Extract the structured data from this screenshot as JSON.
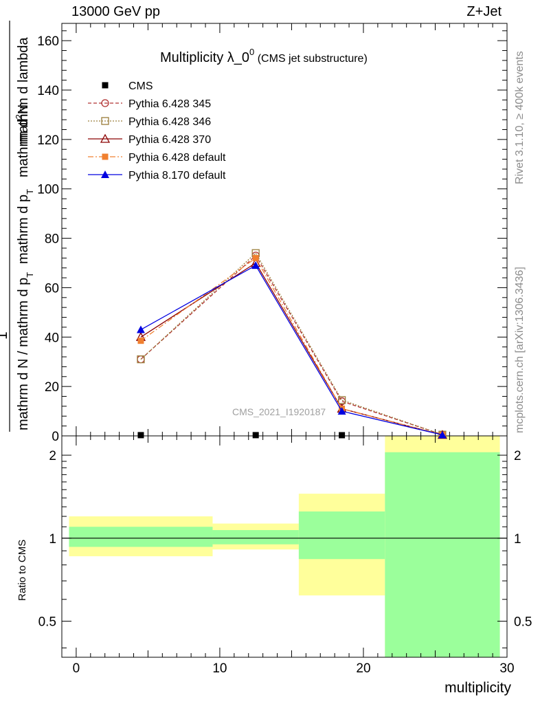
{
  "header": {
    "energy_label": "13000 GeV pp",
    "process_label": "Z+Jet"
  },
  "side_labels": {
    "rivet": "Rivet 3.1.10, ≥ 400k events",
    "source": "mcplots.cern.ch [arXiv:1306.3436]"
  },
  "watermark": "CMS_2021_I1920187",
  "chart_data": [
    {
      "type": "line",
      "title_main": "Multiplicity λ_0",
      "title_sup": "0",
      "title_sub": "(CMS jet substructure)",
      "ylabel_numerator_prefix": "1",
      "ylabel_numerator": "mathrm d",
      "ylabel_numerator_sup": "2",
      "ylabel_numerator_end": "N",
      "ylabel_denominator": "mathrm d N / mathrm d p",
      "ylabel_denominator_sub": "T",
      "ylabel_right_a": "mathrm d p",
      "ylabel_right_a_sub": "T",
      "ylabel_right_b": "mathrm d lambda",
      "xlim": [
        -1,
        30
      ],
      "ylim": [
        0,
        167
      ],
      "yticks": [
        0,
        20,
        40,
        60,
        80,
        100,
        120,
        140,
        160
      ],
      "ytick_labels": [
        "0",
        "20",
        "40",
        "60",
        "80",
        "100",
        "120",
        "140",
        "160"
      ],
      "legend_position": "top-left",
      "series": [
        {
          "name": "CMS",
          "color": "#000000",
          "marker": "square-filled",
          "x": [
            4.5,
            12.5,
            18.5,
            25.5
          ],
          "y": [
            0.3,
            0.3,
            0.2,
            0.1
          ]
        },
        {
          "name": "Pythia 6.428 345",
          "color": "#b03030",
          "marker": "circle-open",
          "dash": "5,3",
          "x": [
            4.5,
            12.5,
            18.5,
            25.5
          ],
          "y": [
            31,
            73,
            14,
            0.5
          ]
        },
        {
          "name": "Pythia 6.428 346",
          "color": "#9a7d3a",
          "marker": "square-open",
          "dash": "2,2",
          "x": [
            4.5,
            12.5,
            18.5,
            25.5
          ],
          "y": [
            31,
            74,
            14.5,
            0.5
          ]
        },
        {
          "name": "Pythia 6.428 370",
          "color": "#8b0000",
          "marker": "triangle-open",
          "dash": "",
          "x": [
            4.5,
            12.5,
            18.5,
            25.5
          ],
          "y": [
            40,
            70,
            11,
            0.4
          ]
        },
        {
          "name": "Pythia 6.428 default",
          "color": "#f08030",
          "marker": "square-filled",
          "dash": "8,3,2,3",
          "x": [
            4.5,
            12.5,
            18.5,
            25.5
          ],
          "y": [
            38.5,
            72,
            11,
            0.4
          ]
        },
        {
          "name": "Pythia 8.170 default",
          "color": "#0000e0",
          "marker": "triangle-filled",
          "dash": "",
          "x": [
            4.5,
            12.5,
            18.5,
            25.5
          ],
          "y": [
            43,
            69,
            10,
            0.4
          ]
        }
      ]
    },
    {
      "type": "area",
      "ylabel": "Ratio to CMS",
      "xlabel": "multiplicity",
      "xlim": [
        -1,
        30
      ],
      "ylim": [
        0.37,
        2.35
      ],
      "log_y": true,
      "xticks": [
        0,
        10,
        20,
        30
      ],
      "xtick_labels": [
        "0",
        "10",
        "20",
        "30"
      ],
      "yticks": [
        0.5,
        1,
        2
      ],
      "ytick_labels": [
        "0.5",
        "1",
        "2"
      ],
      "reference_line": 1,
      "uncertainty_bands": [
        {
          "x_low": -0.5,
          "x_high": 9.5,
          "stat_low": 0.93,
          "stat_high": 1.1,
          "total_low": 0.86,
          "total_high": 1.2
        },
        {
          "x_low": 9.5,
          "x_high": 15.5,
          "stat_low": 0.95,
          "stat_high": 1.07,
          "total_low": 0.91,
          "total_high": 1.13
        },
        {
          "x_low": 15.5,
          "x_high": 21.5,
          "stat_low": 0.84,
          "stat_high": 1.25,
          "total_low": 0.62,
          "total_high": 1.45
        },
        {
          "x_low": 21.5,
          "x_high": 29.5,
          "stat_low": 0.37,
          "stat_high": 2.05,
          "total_low": 0.37,
          "total_high": 2.35
        }
      ],
      "band_colors": {
        "stat": "#9bff9b",
        "total": "#ffff9b"
      }
    }
  ]
}
